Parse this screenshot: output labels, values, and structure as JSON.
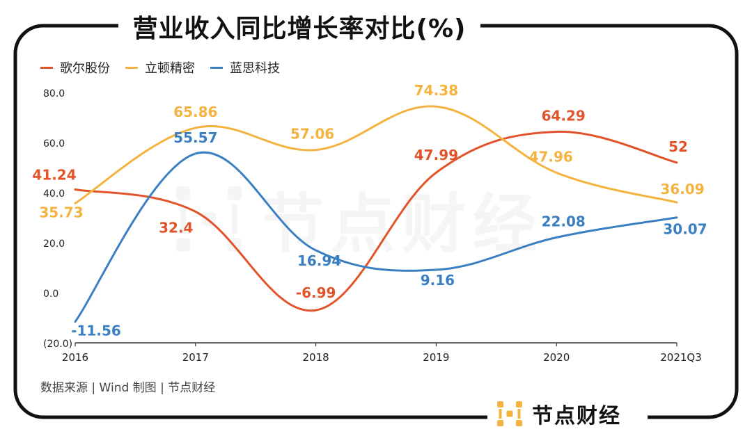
{
  "title": "营业收入同比增长率对比(%)",
  "source_text": "数据来源 | Wind   制图 | 节点财经",
  "brand": {
    "name": "节点财经",
    "icon": "brand-logo-icon"
  },
  "watermark_text": "节点财经",
  "colors": {
    "goertek": "#e2532a",
    "luxshare": "#f4b33f",
    "lens": "#3a7fc1"
  },
  "chart_data": {
    "type": "line",
    "categories": [
      "2016",
      "2017",
      "2018",
      "2019",
      "2020",
      "2021Q3"
    ],
    "y_tick_labels": [
      "80.0",
      "60.0",
      "40.0",
      "20.0",
      "0.0",
      "(20.0)"
    ],
    "y_ticks": [
      80,
      60,
      40,
      20,
      0,
      -20
    ],
    "ylim": [
      -20,
      80
    ],
    "smooth": true,
    "grid": false,
    "legend_position": "top-left",
    "series": [
      {
        "name": "歌尔股份",
        "color": "#e2532a",
        "values": [
          41.24,
          32.4,
          -6.99,
          47.99,
          64.29,
          52
        ],
        "labels": [
          "41.24",
          "32.4",
          "-6.99",
          "47.99",
          "64.29",
          "52"
        ]
      },
      {
        "name": "立顿精密",
        "color": "#f4b33f",
        "values": [
          35.73,
          65.86,
          57.06,
          74.38,
          47.96,
          36.09
        ],
        "labels": [
          "35.73",
          "65.86",
          "57.06",
          "74.38",
          "47.96",
          "36.09"
        ]
      },
      {
        "name": "蓝思科技",
        "color": "#3a7fc1",
        "values": [
          -11.56,
          55.57,
          16.94,
          9.16,
          22.08,
          30.07
        ],
        "labels": [
          "-11.56",
          "55.57",
          "16.94",
          "9.16",
          "22.08",
          "30.07"
        ]
      }
    ]
  }
}
